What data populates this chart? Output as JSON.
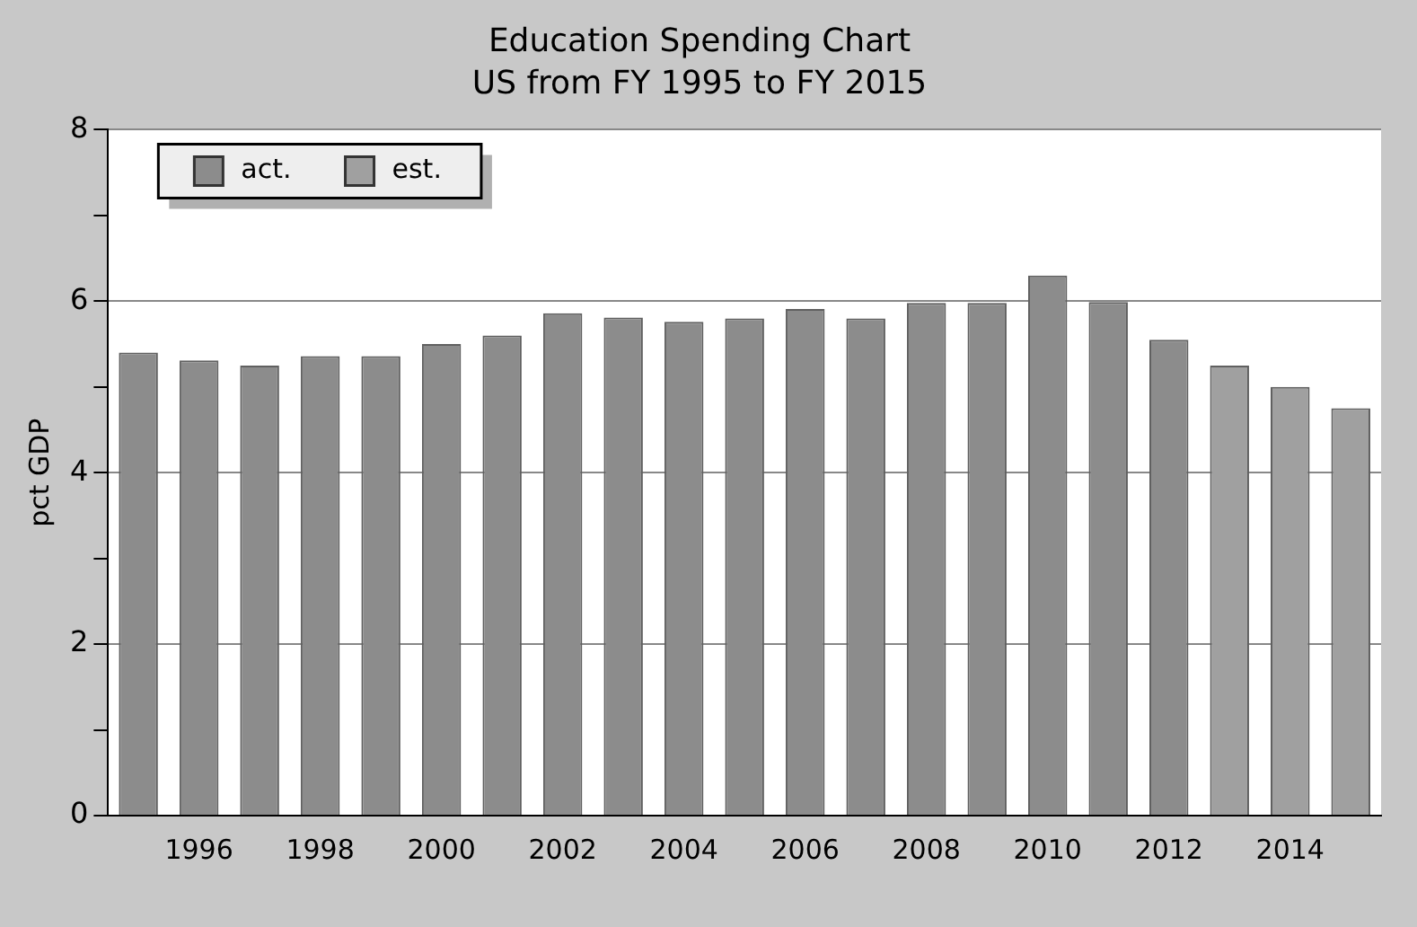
{
  "chart_data": {
    "type": "bar",
    "title": "Education Spending Chart",
    "subtitle": "US from FY 1995 to FY 2015",
    "ylabel": "pct GDP",
    "categories": [
      null,
      "1996",
      null,
      "1998",
      null,
      "2000",
      null,
      "2002",
      null,
      "2004",
      null,
      "2006",
      null,
      "2008",
      null,
      "2010",
      null,
      "2012",
      null,
      "2014",
      null
    ],
    "series": [
      {
        "name": "act.",
        "color": "#8c8c8c",
        "values": [
          5.4,
          5.31,
          5.25,
          5.36,
          5.36,
          5.5,
          5.6,
          5.86,
          5.81,
          5.76,
          5.8,
          5.91,
          5.8,
          5.98,
          5.98,
          6.3,
          5.99,
          5.55,
          null,
          null,
          null
        ]
      },
      {
        "name": "est.",
        "color": "#a0a0a0",
        "values": [
          null,
          null,
          null,
          null,
          null,
          null,
          null,
          null,
          null,
          null,
          null,
          null,
          null,
          null,
          null,
          null,
          null,
          null,
          5.25,
          5,
          4.75
        ]
      }
    ],
    "ylim": [
      0,
      8
    ],
    "yticks": [
      0,
      {
        "value": 1,
        "label": null
      },
      2,
      {
        "value": 3,
        "label": null
      },
      4,
      {
        "value": 5,
        "label": null
      },
      6,
      {
        "value": 7,
        "label": null
      },
      8
    ],
    "grid": "y",
    "legend": "top left"
  }
}
